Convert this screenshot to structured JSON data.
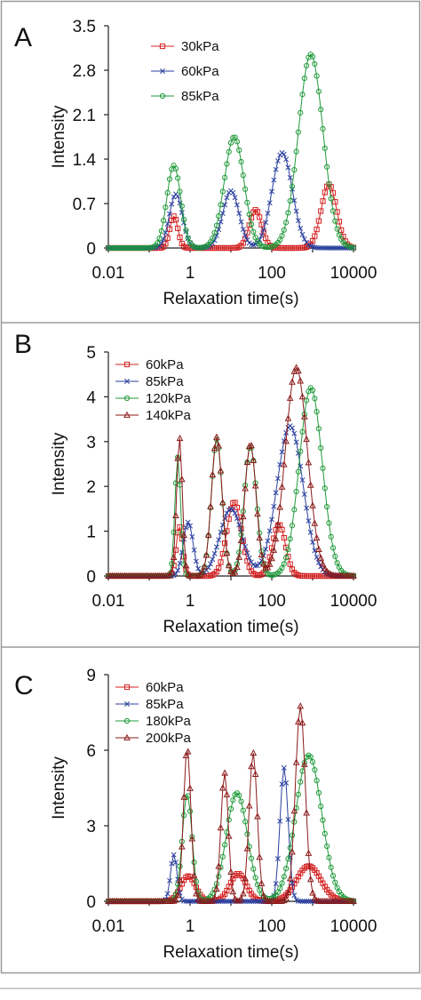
{
  "chart_data": [
    {
      "type": "line",
      "panel_label": "A",
      "xlabel": "Relaxation time(s)",
      "ylabel": "Intensity",
      "xscale": "log",
      "xlim": [
        0.01,
        10000
      ],
      "xticks": [
        "0.01",
        "1",
        "100",
        "10000"
      ],
      "ylim": [
        0,
        3.5
      ],
      "yticks": [
        "0",
        "0.7",
        "1.4",
        "2.1",
        "2.8",
        "3.5"
      ],
      "grid": false,
      "legend_position": "top-left",
      "series": [
        {
          "name": "30kPa",
          "color": "#d42020",
          "marker": "square",
          "x_log_range": [
            -2,
            4
          ],
          "peaks": [
            {
              "x": 0.4,
              "y": 0.5,
              "w": 0.1
            },
            {
              "x": 40,
              "y": 0.6,
              "w": 0.15
            },
            {
              "x": 2500,
              "y": 1.0,
              "w": 0.19
            }
          ]
        },
        {
          "name": "60kPa",
          "color": "#2a3f9e",
          "marker": "x",
          "x_log_range": [
            -2,
            4
          ],
          "peaks": [
            {
              "x": 0.45,
              "y": 0.85,
              "w": 0.16
            },
            {
              "x": 10,
              "y": 0.9,
              "w": 0.2
            },
            {
              "x": 180,
              "y": 1.5,
              "w": 0.25
            }
          ]
        },
        {
          "name": "85kPa",
          "color": "#1f9a3a",
          "marker": "circle",
          "x_log_range": [
            -2,
            4
          ],
          "peaks": [
            {
              "x": 0.4,
              "y": 1.3,
              "w": 0.17
            },
            {
              "x": 12,
              "y": 1.75,
              "w": 0.24
            },
            {
              "x": 900,
              "y": 3.05,
              "w": 0.3
            }
          ]
        }
      ]
    },
    {
      "type": "line",
      "panel_label": "B",
      "xlabel": "Relaxation time(s)",
      "ylabel": "Intensity",
      "xscale": "log",
      "xlim": [
        0.01,
        10000
      ],
      "xticks": [
        "0.01",
        "1",
        "100",
        "10000"
      ],
      "ylim": [
        0,
        5
      ],
      "yticks": [
        "0",
        "1",
        "2",
        "3",
        "4",
        "5"
      ],
      "grid": false,
      "legend_position": "top-left",
      "series": [
        {
          "name": "60kPa",
          "color": "#d42020",
          "marker": "square",
          "x_log_range": [
            -2,
            4
          ],
          "peaks": [
            {
              "x": 0.55,
              "y": 1.1,
              "w": 0.08
            },
            {
              "x": 12,
              "y": 1.65,
              "w": 0.18
            },
            {
              "x": 150,
              "y": 1.15,
              "w": 0.16
            }
          ]
        },
        {
          "name": "85kPa",
          "color": "#2a3f9e",
          "marker": "x",
          "x_log_range": [
            -2,
            4
          ],
          "peaks": [
            {
              "x": 0.9,
              "y": 1.2,
              "w": 0.12
            },
            {
              "x": 10,
              "y": 1.5,
              "w": 0.27
            },
            {
              "x": 280,
              "y": 3.35,
              "w": 0.32
            }
          ]
        },
        {
          "name": "120kPa",
          "color": "#1f9a3a",
          "marker": "circle",
          "x_log_range": [
            -2,
            4
          ],
          "peaks": [
            {
              "x": 0.5,
              "y": 2.65,
              "w": 0.07
            },
            {
              "x": 4.5,
              "y": 3.05,
              "w": 0.13
            },
            {
              "x": 30,
              "y": 2.9,
              "w": 0.15
            },
            {
              "x": 900,
              "y": 4.2,
              "w": 0.28
            }
          ]
        },
        {
          "name": "140kPa",
          "color": "#8b1a1a",
          "marker": "triangle",
          "x_log_range": [
            -2,
            4
          ],
          "peaks": [
            {
              "x": 0.55,
              "y": 3.1,
              "w": 0.07
            },
            {
              "x": 4.5,
              "y": 3.1,
              "w": 0.13
            },
            {
              "x": 30,
              "y": 2.95,
              "w": 0.14
            },
            {
              "x": 400,
              "y": 4.65,
              "w": 0.27
            }
          ]
        }
      ]
    },
    {
      "type": "line",
      "panel_label": "C",
      "xlabel": "Relaxation time(s)",
      "ylabel": "Intensity",
      "xscale": "log",
      "xlim": [
        0.01,
        10000
      ],
      "xticks": [
        "0.01",
        "1",
        "100",
        "10000"
      ],
      "ylim": [
        0,
        9
      ],
      "yticks": [
        "0",
        "3",
        "6",
        "9"
      ],
      "grid": false,
      "legend_position": "top-left",
      "series": [
        {
          "name": "60kPa",
          "color": "#d42020",
          "marker": "square",
          "x_log_range": [
            -2,
            4
          ],
          "peaks": [
            {
              "x": 0.9,
              "y": 1.0,
              "w": 0.18
            },
            {
              "x": 15,
              "y": 1.1,
              "w": 0.2
            },
            {
              "x": 800,
              "y": 1.4,
              "w": 0.3
            }
          ]
        },
        {
          "name": "85kPa",
          "color": "#2a3f9e",
          "marker": "x",
          "x_log_range": [
            -2,
            4
          ],
          "peaks": [
            {
              "x": 0.4,
              "y": 1.85,
              "w": 0.08
            },
            {
              "x": 200,
              "y": 5.3,
              "w": 0.1
            }
          ]
        },
        {
          "name": "180kPa",
          "color": "#1f9a3a",
          "marker": "circle",
          "x_log_range": [
            -2,
            4
          ],
          "peaks": [
            {
              "x": 0.85,
              "y": 4.25,
              "w": 0.12
            },
            {
              "x": 14,
              "y": 4.3,
              "w": 0.26
            },
            {
              "x": 800,
              "y": 5.8,
              "w": 0.32
            }
          ]
        },
        {
          "name": "200kPa",
          "color": "#8b1a1a",
          "marker": "triangle",
          "x_log_range": [
            -2,
            4
          ],
          "peaks": [
            {
              "x": 0.85,
              "y": 6.1,
              "w": 0.09
            },
            {
              "x": 7,
              "y": 5.1,
              "w": 0.09
            },
            {
              "x": 35,
              "y": 5.9,
              "w": 0.1
            },
            {
              "x": 500,
              "y": 7.75,
              "w": 0.12
            }
          ]
        }
      ]
    }
  ]
}
